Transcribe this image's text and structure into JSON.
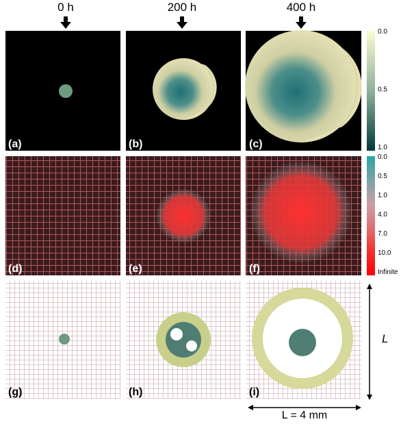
{
  "headers": [
    "0 h",
    "200 h",
    "400 h"
  ],
  "panel_labels": [
    "(a)",
    "(b)",
    "(c)",
    "(d)",
    "(e)",
    "(f)",
    "(g)",
    "(h)",
    "(i)"
  ],
  "colorbars": [
    {
      "labels": [
        "0.0",
        "0.5",
        "1.0"
      ]
    },
    {
      "labels": [
        "0.0",
        "0.5",
        "1.0",
        "4.0",
        "7.0",
        "10.0",
        "Infinite"
      ]
    }
  ],
  "scale": {
    "vertical": "L",
    "horizontal": "L = 4 mm"
  }
}
